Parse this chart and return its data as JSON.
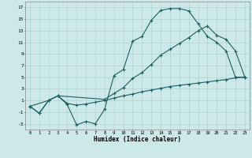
{
  "xlabel": "Humidex (Indice chaleur)",
  "xlim": [
    -0.5,
    23.5
  ],
  "ylim": [
    -4,
    18
  ],
  "yticks": [
    -3,
    -1,
    1,
    3,
    5,
    7,
    9,
    11,
    13,
    15,
    17
  ],
  "xticks": [
    0,
    1,
    2,
    3,
    4,
    5,
    6,
    7,
    8,
    9,
    10,
    11,
    12,
    13,
    14,
    15,
    16,
    17,
    18,
    19,
    20,
    21,
    22,
    23
  ],
  "bg_color": "#cde8e8",
  "grid_color": "#aacccc",
  "line_color": "#1a6060",
  "line1_x": [
    0,
    1,
    2,
    3,
    4,
    5,
    6,
    7,
    8,
    9,
    10,
    11,
    12,
    13,
    14,
    15,
    16,
    17,
    18,
    19,
    20,
    21,
    22,
    23
  ],
  "line1_y": [
    0,
    -1.2,
    1.0,
    1.8,
    0.3,
    -3.2,
    -2.6,
    -3.0,
    -0.5,
    5.3,
    6.3,
    11.2,
    12.0,
    14.8,
    16.5,
    16.8,
    16.8,
    16.4,
    14.2,
    12.0,
    11.0,
    9.5,
    5.0,
    5.0
  ],
  "line2_x": [
    0,
    2,
    3,
    8,
    9,
    10,
    11,
    12,
    13,
    14,
    15,
    16,
    17,
    18,
    19,
    20,
    21,
    22,
    23
  ],
  "line2_y": [
    0,
    1.0,
    1.8,
    1.2,
    2.2,
    3.2,
    4.8,
    5.8,
    7.2,
    8.8,
    9.8,
    10.8,
    11.8,
    13.0,
    13.8,
    12.2,
    11.5,
    9.5,
    5.0
  ],
  "line3_x": [
    0,
    1,
    2,
    3,
    4,
    5,
    6,
    7,
    8,
    9,
    10,
    11,
    12,
    13,
    14,
    15,
    16,
    17,
    18,
    19,
    20,
    21,
    22,
    23
  ],
  "line3_y": [
    0,
    -1.2,
    1.0,
    1.8,
    0.5,
    0.2,
    0.4,
    0.7,
    1.0,
    1.4,
    1.8,
    2.1,
    2.5,
    2.8,
    3.1,
    3.4,
    3.6,
    3.8,
    4.0,
    4.2,
    4.4,
    4.6,
    4.9,
    5.0
  ]
}
